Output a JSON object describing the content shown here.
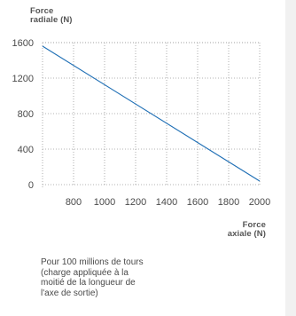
{
  "chart_data": {
    "type": "line",
    "ylabel_line1": "Force",
    "ylabel_line2": "radiale (N)",
    "xlabel_line1": "Force",
    "xlabel_line2": "axiale (N)",
    "x_ticks": [
      800,
      1000,
      1200,
      1400,
      1600,
      1800,
      2000
    ],
    "y_ticks": [
      0,
      400,
      800,
      1200,
      1600
    ],
    "xlim": [
      600,
      2000
    ],
    "ylim": [
      0,
      1600
    ],
    "grid": true,
    "series": [
      {
        "x": [
          600,
          2000
        ],
        "y": [
          1560,
          40
        ]
      }
    ],
    "line_color": "#1f6fb5",
    "note_line1": "Pour 100 millions de tours",
    "note_line2": "(charge appliquée à la",
    "note_line3": "moitié de la longueur de",
    "note_line4": "l'axe de sortie)"
  }
}
